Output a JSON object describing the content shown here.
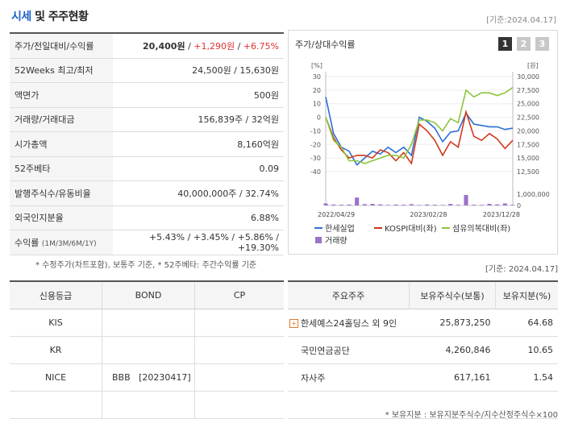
{
  "header": {
    "title_main": "시세",
    "title_rest": " 및 주주현황",
    "asof": "[기준:2024.04.17]"
  },
  "info_rows": [
    {
      "label": "주가/전일대비/수익률",
      "v1": "20,400원",
      "sep1": " / ",
      "v2": "+1,290원",
      "sep2": " / ",
      "v3": "+6.75%"
    },
    {
      "label": "52Weeks 최고/최저",
      "value": "24,500원 / 15,630원"
    },
    {
      "label": "액면가",
      "value": "500원"
    },
    {
      "label": "거래량/거래대금",
      "value": "156,839주 / 32억원"
    },
    {
      "label": "시가총액",
      "value": "8,160억원"
    },
    {
      "label": "52주베타",
      "value": "0.09"
    },
    {
      "label": "발행주식수/유동비율",
      "value": "40,000,000주 / 32.74%"
    },
    {
      "label": "외국인지분율",
      "value": "6.88%"
    },
    {
      "label": "수익률",
      "label_small": "(1M/3M/6M/1Y)",
      "value": "+5.43% / +3.45% / +5.86% / +19.30%"
    }
  ],
  "note_left": "* 수정주가(차트포함), 보통주 기준, * 52주베타: 주간수익률 기준",
  "note_right": "[기준: 2024.04.17]",
  "chart_panel": {
    "title": "주가/상대수익률",
    "tabs": [
      "1",
      "2",
      "3"
    ]
  },
  "chart_data": {
    "type": "line",
    "left_unit": "[%]",
    "right_unit": "[원]",
    "y_left_ticks": [
      "30",
      "20",
      "10",
      "0",
      "-10",
      "-20",
      "-30",
      "-40"
    ],
    "y_right_ticks": [
      "30,000",
      "27,500",
      "25,000",
      "22,500",
      "20,000",
      "17,500",
      "15,000",
      "12,500"
    ],
    "vol_ticks": [
      "1,000,000",
      "0"
    ],
    "x_ticks": [
      "2022/04/29",
      "2023/02/28",
      "2023/12/28"
    ],
    "x": [
      0,
      1,
      2,
      3,
      4,
      5,
      6,
      7,
      8,
      9,
      10,
      11,
      12,
      13,
      14,
      15,
      16,
      17,
      18,
      19,
      20,
      21,
      22,
      23,
      24
    ],
    "series": [
      {
        "name": "한세실업",
        "color": "#2b6fd6",
        "values": [
          15,
          -12,
          -22,
          -25,
          -35,
          -30,
          -25,
          -27,
          -22,
          -26,
          -22,
          -28,
          0,
          -3,
          -8,
          -18,
          -11,
          -10,
          3,
          -5,
          -6,
          -7,
          -7,
          -9,
          -8
        ]
      },
      {
        "name": "KOSPI대비(좌)",
        "color": "#d0391e",
        "values": [
          0,
          -15,
          -24,
          -30,
          -28,
          -28,
          -30,
          -24,
          -26,
          -32,
          -26,
          -34,
          -5,
          -10,
          -17,
          -28,
          -18,
          -22,
          4,
          -14,
          -17,
          -12,
          -16,
          -23,
          -17
        ]
      },
      {
        "name": "섬유의복대비(좌)",
        "color": "#8cc43a",
        "values": [
          0,
          -17,
          -22,
          -32,
          -32,
          -34,
          -32,
          -30,
          -28,
          -28,
          -30,
          -20,
          -2,
          -2,
          -4,
          -10,
          -1,
          -4,
          20,
          15,
          18,
          18,
          16,
          18,
          22
        ]
      }
    ],
    "volume": {
      "name": "거래량",
      "color": "#9b73c9",
      "values": [
        250000,
        120000,
        90000,
        110000,
        980000,
        160000,
        200000,
        130000,
        70000,
        110000,
        90000,
        160000,
        60000,
        120000,
        90000,
        60000,
        190000,
        80000,
        1300000,
        90000,
        70000,
        200000,
        130000,
        250000,
        80000
      ]
    },
    "ylim_left": [
      -40,
      30
    ],
    "ylim_vol": [
      0,
      1400000
    ]
  },
  "credit": {
    "headers": [
      "신용등급",
      "BOND",
      "CP"
    ],
    "rows": [
      [
        "KIS",
        "",
        ""
      ],
      [
        "KR",
        "",
        ""
      ],
      [
        "NICE",
        "BBB   [20230417]",
        ""
      ],
      [
        "",
        "",
        ""
      ]
    ]
  },
  "share": {
    "headers": [
      "주요주주",
      "보유주식수(보통)",
      "보유지분(%)"
    ],
    "rows": [
      [
        "한세예스24홀딩스 외 9인",
        "25,873,250",
        "64.68"
      ],
      [
        "국민연금공단",
        "4,260,846",
        "10.65"
      ],
      [
        "자사주",
        "617,161",
        "1.54"
      ],
      [
        "",
        "",
        ""
      ]
    ],
    "footnote": "* 보유지분 : 보유지분주식수/지수산정주식수×100"
  }
}
